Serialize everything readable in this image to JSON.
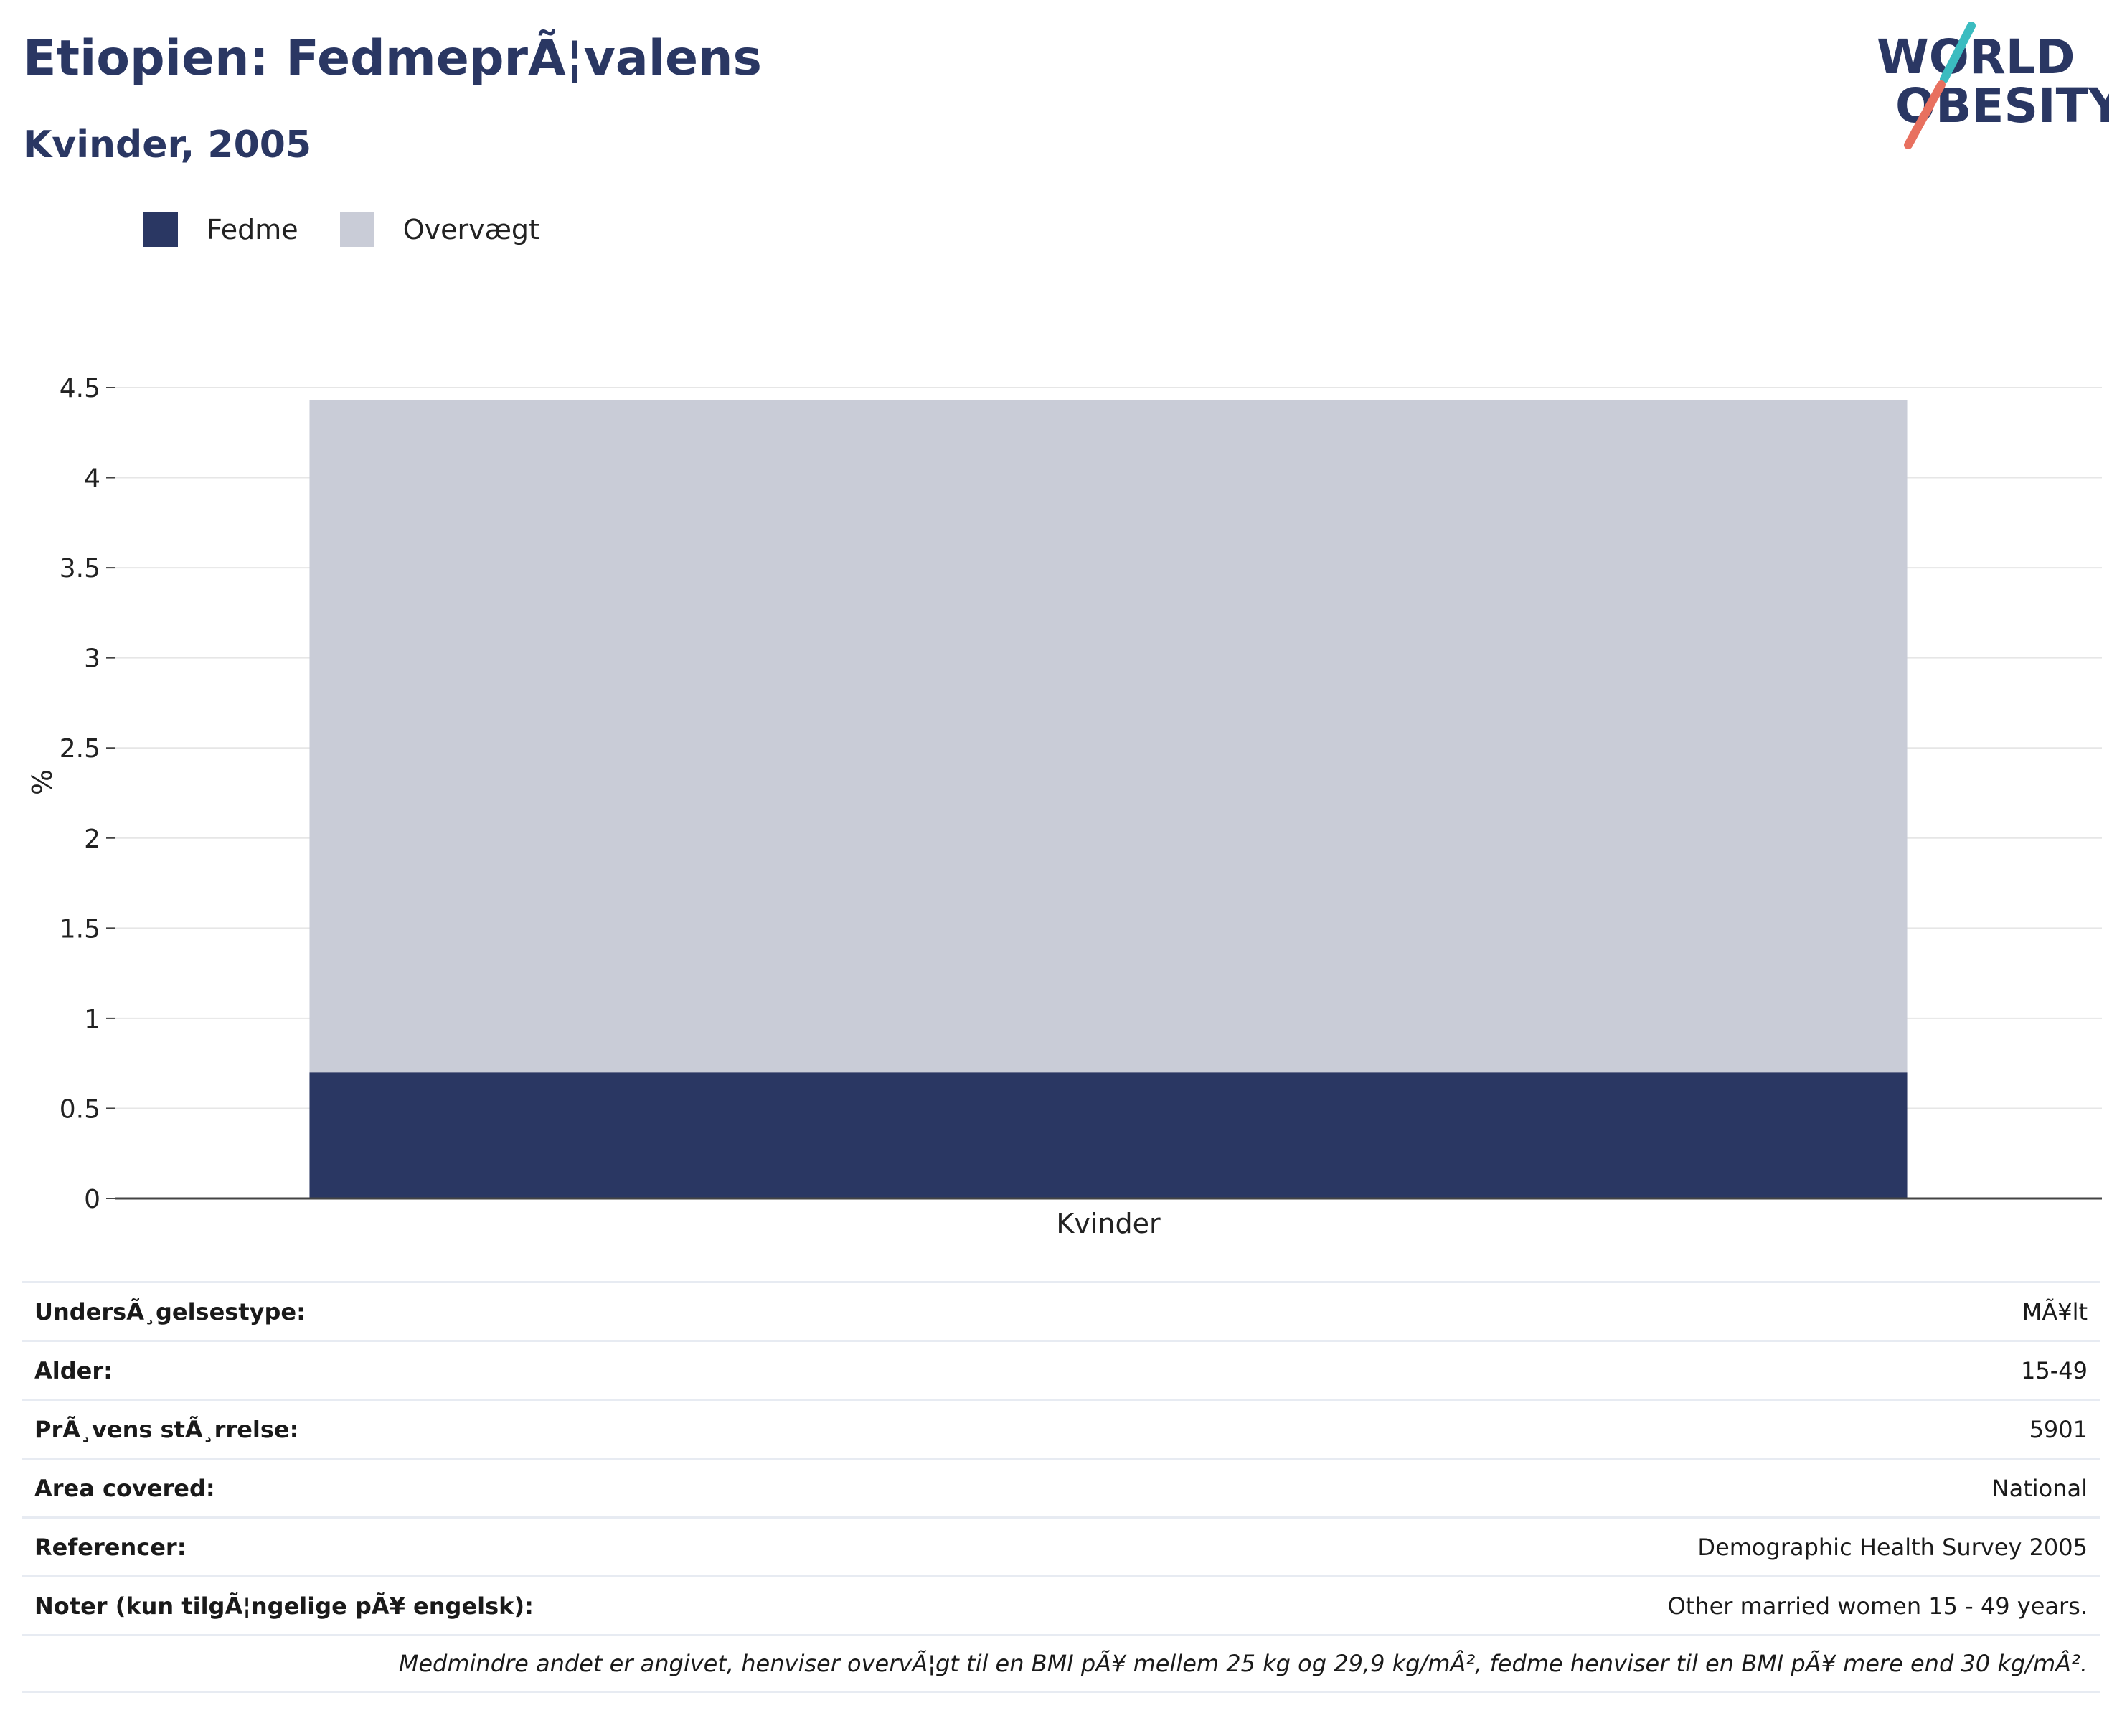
{
  "header": {
    "title": "Etiopien: FedmeprÃ¦valens",
    "subtitle": "Kvinder, 2005"
  },
  "logo": {
    "line1": "WORLD",
    "line2": "OBESITY"
  },
  "legend": [
    {
      "label": "Fedme",
      "color": "#2a3763"
    },
    {
      "label": "Overvægt",
      "color": "#c9ccd7"
    }
  ],
  "chart_data": {
    "type": "bar",
    "stacked": true,
    "categories": [
      "Kvinder"
    ],
    "series": [
      {
        "name": "Fedme",
        "values": [
          0.7
        ],
        "color": "#2a3763"
      },
      {
        "name": "Overvægt",
        "values": [
          3.73
        ],
        "color": "#c9ccd7"
      }
    ],
    "ylabel": "%",
    "xlabel": "",
    "ylim": [
      0,
      4.5
    ],
    "yticks": [
      "0",
      "0.5",
      "1",
      "1.5",
      "2",
      "2.5",
      "3",
      "3.5",
      "4",
      "4.5"
    ],
    "grid": true,
    "legend_position": "top-left"
  },
  "info": {
    "rows": [
      {
        "label": "UndersÃ¸gelsestype:",
        "value": "MÃ¥lt"
      },
      {
        "label": "Alder:",
        "value": "15-49"
      },
      {
        "label": "PrÃ¸vens stÃ¸rrelse:",
        "value": "5901"
      },
      {
        "label": "Area covered:",
        "value": "National"
      },
      {
        "label": "Referencer:",
        "value": "Demographic Health Survey 2005"
      },
      {
        "label": "Noter (kun tilgÃ¦ngelige pÃ¥ engelsk):",
        "value": "Other married women 15 - 49 years."
      }
    ],
    "footnote": "Medmindre andet er angivet, henviser overvÃ¦gt til en BMI pÃ¥ mellem 25 kg og 29,9 kg/mÂ², fedme henviser til en BMI pÃ¥ mere end 30 kg/mÂ²."
  }
}
